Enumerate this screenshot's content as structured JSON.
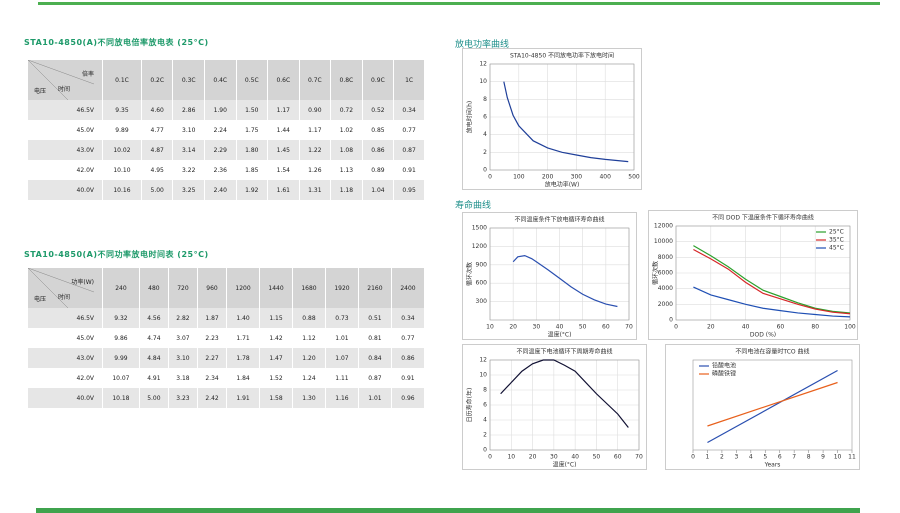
{
  "tables": [
    {
      "title": "STA10-4850(A)不同放电倍率放电表 (25°C)",
      "corner": {
        "top": "倍率",
        "left": "电压",
        "middle": "时间"
      },
      "columns": [
        "0.1C",
        "0.2C",
        "0.3C",
        "0.4C",
        "0.5C",
        "0.6C",
        "0.7C",
        "0.8C",
        "0.9C",
        "1C"
      ],
      "rows": [
        {
          "label": "46.5V",
          "cells": [
            "9.35",
            "4.60",
            "2.86",
            "1.90",
            "1.50",
            "1.17",
            "0.90",
            "0.72",
            "0.52",
            "0.34"
          ]
        },
        {
          "label": "45.0V",
          "cells": [
            "9.89",
            "4.77",
            "3.10",
            "2.24",
            "1.75",
            "1.44",
            "1.17",
            "1.02",
            "0.85",
            "0.77"
          ]
        },
        {
          "label": "43.0V",
          "cells": [
            "10.02",
            "4.87",
            "3.14",
            "2.29",
            "1.80",
            "1.45",
            "1.22",
            "1.08",
            "0.86",
            "0.87"
          ]
        },
        {
          "label": "42.0V",
          "cells": [
            "10.10",
            "4.95",
            "3.22",
            "2.36",
            "1.85",
            "1.54",
            "1.26",
            "1.13",
            "0.89",
            "0.91"
          ]
        },
        {
          "label": "40.0V",
          "cells": [
            "10.16",
            "5.00",
            "3.25",
            "2.40",
            "1.92",
            "1.61",
            "1.31",
            "1.18",
            "1.04",
            "0.95"
          ]
        }
      ]
    },
    {
      "title": "STA10-4850(A)不同功率放电时间表 (25°C)",
      "corner": {
        "top": "功率(W)",
        "left": "电压",
        "middle": "时间"
      },
      "columns": [
        "240",
        "480",
        "720",
        "960",
        "1200",
        "1440",
        "1680",
        "1920",
        "2160",
        "2400"
      ],
      "rows": [
        {
          "label": "46.5V",
          "cells": [
            "9.32",
            "4.56",
            "2.82",
            "1.87",
            "1.40",
            "1.15",
            "0.88",
            "0.73",
            "0.51",
            "0.34"
          ]
        },
        {
          "label": "45.0V",
          "cells": [
            "9.86",
            "4.74",
            "3.07",
            "2.23",
            "1.71",
            "1.42",
            "1.12",
            "1.01",
            "0.81",
            "0.77"
          ]
        },
        {
          "label": "43.0V",
          "cells": [
            "9.99",
            "4.84",
            "3.10",
            "2.27",
            "1.78",
            "1.47",
            "1.20",
            "1.07",
            "0.84",
            "0.86"
          ]
        },
        {
          "label": "42.0V",
          "cells": [
            "10.07",
            "4.91",
            "3.18",
            "2.34",
            "1.84",
            "1.52",
            "1.24",
            "1.11",
            "0.87",
            "0.91"
          ]
        },
        {
          "label": "40.0V",
          "cells": [
            "10.18",
            "5.00",
            "3.23",
            "2.42",
            "1.91",
            "1.58",
            "1.30",
            "1.16",
            "1.01",
            "0.96"
          ]
        }
      ]
    }
  ],
  "sections": [
    "放电功率曲线",
    "寿命曲线"
  ],
  "chart_data": [
    {
      "type": "line",
      "title": "STA10-4850 不同放电功率下放电时间",
      "x_label": "放电功率(W)",
      "y_label": "放电时间(h)",
      "xlim": [
        0,
        500
      ],
      "xticks": [
        0,
        100,
        200,
        300,
        400,
        500
      ],
      "ylim": [
        0,
        12
      ],
      "yticks": [
        0,
        2,
        4,
        6,
        8,
        10,
        12
      ],
      "grid": true,
      "x": [
        48,
        60,
        80,
        100,
        150,
        200,
        250,
        300,
        350,
        400,
        480
      ],
      "series": [
        {
          "color": "#1f3f99",
          "values": [
            10,
            8.2,
            6.2,
            5,
            3.3,
            2.5,
            2,
            1.7,
            1.4,
            1.2,
            0.95
          ]
        }
      ]
    },
    {
      "type": "line",
      "title": "不同温度条件下放电循环寿命曲线",
      "x_label": "温度(°C)",
      "y_label": "循环次数",
      "xlim": [
        10,
        70
      ],
      "xticks": [
        10,
        20,
        30,
        40,
        50,
        60,
        70
      ],
      "ylim": [
        0,
        1500
      ],
      "yticks": [
        300,
        600,
        900,
        1200,
        1500
      ],
      "grid": true,
      "x": [
        20,
        22,
        25,
        28,
        30,
        35,
        40,
        45,
        50,
        55,
        60,
        65
      ],
      "series": [
        {
          "color": "#2a4fb0",
          "values": [
            950,
            1030,
            1050,
            1000,
            950,
            820,
            680,
            540,
            420,
            330,
            260,
            220
          ]
        }
      ]
    },
    {
      "type": "line",
      "title": "不同 DOD 下温度条件下循环寿命曲线",
      "x_label": "DOD (%)",
      "y_label": "循环次数",
      "xlim": [
        0,
        100
      ],
      "xticks": [
        0,
        20,
        40,
        60,
        80,
        100
      ],
      "ylim": [
        0,
        12000
      ],
      "yticks": [
        0,
        2000,
        4000,
        6000,
        8000,
        10000,
        12000
      ],
      "grid": true,
      "legend": "upper right",
      "x": [
        10,
        20,
        30,
        40,
        50,
        60,
        70,
        80,
        90,
        100
      ],
      "series": [
        {
          "name": "25°C",
          "color": "#2ca02c",
          "values": [
            9500,
            8200,
            6800,
            5200,
            3800,
            3000,
            2200,
            1500,
            1100,
            900
          ]
        },
        {
          "name": "35°C",
          "color": "#d62728",
          "values": [
            9000,
            7800,
            6500,
            4800,
            3400,
            2700,
            2000,
            1400,
            1000,
            800
          ]
        },
        {
          "name": "45°C",
          "color": "#1f4fb4",
          "values": [
            4200,
            3200,
            2600,
            2000,
            1500,
            1200,
            900,
            700,
            500,
            400
          ]
        }
      ]
    },
    {
      "type": "line",
      "title": "不同温度下电池循环下周期寿命曲线",
      "x_label": "温度(°C)",
      "y_label": "日历寿命(年)",
      "xlim": [
        0,
        70
      ],
      "xticks": [
        0,
        10,
        20,
        30,
        40,
        50,
        60,
        70
      ],
      "ylim": [
        0,
        12
      ],
      "yticks": [
        0,
        2,
        4,
        6,
        8,
        10,
        12
      ],
      "grid": true,
      "x": [
        5,
        10,
        15,
        20,
        25,
        30,
        35,
        40,
        50,
        60,
        65
      ],
      "series": [
        {
          "color": "#111133",
          "values": [
            7.5,
            9,
            10.5,
            11.5,
            12,
            12,
            11.3,
            10.5,
            7.5,
            4.8,
            3
          ]
        }
      ]
    },
    {
      "type": "line",
      "title": "不同电池在容量时TCO 曲线",
      "x_label": "Years",
      "xlim": [
        0,
        11
      ],
      "xticks": [
        0,
        1,
        2,
        3,
        4,
        5,
        6,
        7,
        8,
        9,
        10,
        11
      ],
      "ylim": [
        0,
        6
      ],
      "grid": true,
      "legend": "upper left",
      "x": [
        1,
        10
      ],
      "series": [
        {
          "name": "铅酸电池",
          "color": "#2a4fb0",
          "values": [
            0.5,
            5.3
          ]
        },
        {
          "name": "磷酸铁锂",
          "color": "#e8601c",
          "values": [
            1.6,
            4.5
          ]
        }
      ]
    }
  ]
}
